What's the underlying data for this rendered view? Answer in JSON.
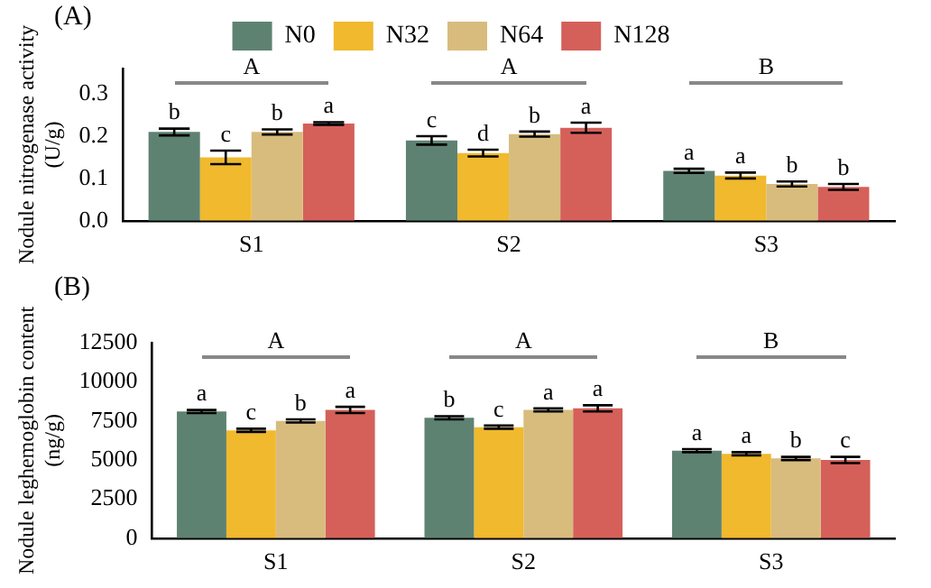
{
  "chart_data": [
    {
      "type": "bar",
      "ylabel": "Nodule nitrogenase activity\n(U/g)",
      "categories": [
        "S1",
        "S2",
        "S3"
      ],
      "legend": "top",
      "grid": false,
      "ylim": [
        0,
        0.36
      ],
      "yticks": [
        {
          "value": 0,
          "label": "0.0"
        },
        0.1,
        0.2,
        0.3
      ],
      "annotations": [
        "(A)",
        "A",
        "A",
        "B"
      ],
      "series": [
        {
          "name": "N0",
          "color": "#5e8272",
          "values": [
            0.21,
            0.19,
            0.118
          ],
          "errors": [
            0.008,
            0.01,
            0.005
          ],
          "value_labels": [
            "b",
            "c",
            "a"
          ]
        },
        {
          "name": "N32",
          "color": "#f0b92e",
          "values": [
            0.15,
            0.16,
            0.107
          ],
          "errors": [
            0.016,
            0.008,
            0.007
          ],
          "value_labels": [
            "c",
            "d",
            "a"
          ]
        },
        {
          "name": "N64",
          "color": "#d8bc7e",
          "values": [
            0.21,
            0.205,
            0.087
          ],
          "errors": [
            0.006,
            0.006,
            0.006
          ],
          "value_labels": [
            "b",
            "b",
            "b"
          ]
        },
        {
          "name": "N128",
          "color": "#d5605a",
          "values": [
            0.23,
            0.22,
            0.08
          ],
          "errors": [
            0.003,
            0.012,
            0.007
          ],
          "value_labels": [
            "a",
            "a",
            "b"
          ]
        }
      ]
    },
    {
      "type": "bar",
      "ylabel": "Nodule leghemoglobin content\n(ng/g)",
      "categories": [
        "S1",
        "S2",
        "S3"
      ],
      "legend": false,
      "grid": false,
      "ylim": [
        0,
        12500
      ],
      "yticks": [
        0,
        2500,
        5000,
        7500,
        10000,
        12500
      ],
      "annotations": [
        "(B)",
        "A",
        "A",
        "B"
      ],
      "series": [
        {
          "color": "#5e8272",
          "values": [
            8100,
            7700,
            5600
          ],
          "errors": [
            100,
            100,
            100
          ],
          "value_labels": [
            "a",
            "b",
            "a"
          ]
        },
        {
          "color": "#f0b92e",
          "values": [
            6900,
            7100,
            5400
          ],
          "errors": [
            100,
            100,
            100
          ],
          "value_labels": [
            "c",
            "c",
            "a"
          ]
        },
        {
          "color": "#d8bc7e",
          "values": [
            7500,
            8200,
            5100
          ],
          "errors": [
            100,
            100,
            100
          ],
          "value_labels": [
            "b",
            "a",
            "b"
          ]
        },
        {
          "color": "#d5605a",
          "values": [
            8200,
            8300,
            5000
          ],
          "errors": [
            200,
            200,
            200
          ],
          "value_labels": [
            "a",
            "a",
            "c"
          ]
        }
      ]
    }
  ]
}
